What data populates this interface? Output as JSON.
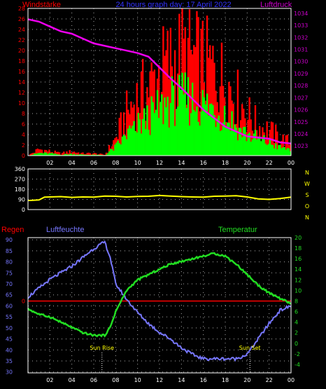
{
  "colors": {
    "background": "#000000",
    "frame": "#ffffff",
    "grid": "#aaaaaa",
    "title_left": "#ff0000",
    "title_center": "#3333ff",
    "title_right": "#cc00cc",
    "wind_gust": "#ff0000",
    "wind_avg": "#00ff00",
    "pressure": "#ee00ee",
    "direction": "#ffff00",
    "compass": "#ffff00",
    "rain": "#ff0000",
    "humidity": "#7777ff",
    "temperature": "#22dd22",
    "sun_label": "#ffff00"
  },
  "header": {
    "left_title": "Windstärke",
    "center_title": "24 hours graph day: 17 April 2022",
    "right_title": "Luftdruck"
  },
  "x_ticks": [
    "02",
    "04",
    "06",
    "08",
    "10",
    "12",
    "14",
    "16",
    "18",
    "20",
    "22",
    "00"
  ],
  "compass": {
    "labels": [
      "N",
      "W",
      "S",
      "O",
      "N"
    ]
  },
  "chart_data": [
    {
      "type": "bar",
      "name": "wind-pressure",
      "x_range_hours": [
        0,
        24
      ],
      "y_left_ticks": [
        "0",
        "2",
        "4",
        "6",
        "8",
        "10",
        "12",
        "14",
        "16",
        "18",
        "20",
        "22",
        "24",
        "26",
        "28"
      ],
      "y_right_ticks": [
        "1034",
        "1033",
        "1032",
        "1031",
        "1030",
        "1029",
        "1028",
        "1027",
        "1026",
        "1025",
        "1024",
        "1023"
      ],
      "ylim_left": [
        0,
        28
      ],
      "ylim_right": [
        1022.2,
        1034.4
      ],
      "gust_profile": [
        [
          0,
          0
        ],
        [
          1,
          1.5
        ],
        [
          2,
          1
        ],
        [
          3,
          0.5
        ],
        [
          4,
          1
        ],
        [
          5,
          0.5
        ],
        [
          6,
          0.5
        ],
        [
          7,
          0.2
        ],
        [
          8,
          4
        ],
        [
          9,
          10
        ],
        [
          10,
          14
        ],
        [
          11,
          16
        ],
        [
          12,
          20
        ],
        [
          13,
          22
        ],
        [
          14,
          24
        ],
        [
          15,
          23
        ],
        [
          16,
          22
        ],
        [
          17,
          20
        ],
        [
          18,
          18
        ],
        [
          19,
          14
        ],
        [
          20,
          10
        ],
        [
          21,
          7
        ],
        [
          22,
          6
        ],
        [
          23,
          4
        ],
        [
          24,
          3
        ]
      ],
      "avg_profile": [
        [
          0,
          0
        ],
        [
          1,
          0.6
        ],
        [
          2,
          0.5
        ],
        [
          3,
          0.2
        ],
        [
          4,
          0.4
        ],
        [
          5,
          0.2
        ],
        [
          6,
          0.2
        ],
        [
          7,
          0.1
        ],
        [
          8,
          2
        ],
        [
          9,
          5
        ],
        [
          10,
          7
        ],
        [
          11,
          9
        ],
        [
          12,
          11
        ],
        [
          13,
          13
        ],
        [
          14,
          14
        ],
        [
          15,
          13
        ],
        [
          16,
          12
        ],
        [
          17,
          11
        ],
        [
          18,
          10
        ],
        [
          19,
          7
        ],
        [
          20,
          5
        ],
        [
          21,
          4
        ],
        [
          22,
          3
        ],
        [
          23,
          2
        ],
        [
          24,
          1.5
        ]
      ],
      "pressure": [
        [
          0,
          1033.5
        ],
        [
          1,
          1033.3
        ],
        [
          2,
          1032.9
        ],
        [
          3,
          1032.5
        ],
        [
          4,
          1032.3
        ],
        [
          5,
          1031.9
        ],
        [
          6,
          1031.5
        ],
        [
          7,
          1031.3
        ],
        [
          8,
          1031.1
        ],
        [
          9,
          1030.9
        ],
        [
          10,
          1030.7
        ],
        [
          11,
          1030.4
        ],
        [
          12,
          1029.5
        ],
        [
          13,
          1028.6
        ],
        [
          14,
          1027.8
        ],
        [
          15,
          1026.9
        ],
        [
          16,
          1026.0
        ],
        [
          17,
          1025.3
        ],
        [
          18,
          1024.6
        ],
        [
          19,
          1024.2
        ],
        [
          20,
          1023.8
        ],
        [
          21,
          1023.7
        ],
        [
          22,
          1023.6
        ],
        [
          23,
          1023.3
        ],
        [
          24,
          1023.2
        ]
      ]
    },
    {
      "type": "line",
      "name": "wind-direction",
      "y_ticks": [
        "360",
        "270",
        "180",
        "90",
        "0"
      ],
      "ylim": [
        0,
        360
      ],
      "direction": [
        [
          0,
          80
        ],
        [
          1,
          85
        ],
        [
          1.5,
          110
        ],
        [
          3,
          115
        ],
        [
          4,
          108
        ],
        [
          5,
          112
        ],
        [
          6,
          110
        ],
        [
          7,
          120
        ],
        [
          8,
          118
        ],
        [
          9,
          112
        ],
        [
          10,
          116
        ],
        [
          11,
          118
        ],
        [
          12,
          125
        ],
        [
          13,
          120
        ],
        [
          14,
          115
        ],
        [
          15,
          112
        ],
        [
          16,
          110
        ],
        [
          17,
          118
        ],
        [
          18,
          120
        ],
        [
          19,
          122
        ],
        [
          20,
          112
        ],
        [
          21,
          95
        ],
        [
          22,
          90
        ],
        [
          23,
          98
        ],
        [
          24,
          110
        ]
      ]
    },
    {
      "type": "line",
      "name": "humidity-temperature",
      "left_title": "Regen",
      "center_title": "Luftfeuchte",
      "right_title": "Temperatur",
      "y_left_ticks": [
        "90",
        "85",
        "80",
        "75",
        "70",
        "65",
        "60",
        "55",
        "50",
        "45",
        "40",
        "35",
        "30"
      ],
      "y_right_ticks": [
        "20",
        "18",
        "16",
        "14",
        "12",
        "10",
        "8",
        "6",
        "4",
        "2",
        "0",
        "-2",
        "-4"
      ],
      "rain_label": "0",
      "rain_value": 0,
      "ylim_humidity": [
        29.6,
        91
      ],
      "ylim_temperature": [
        -5.6,
        20
      ],
      "humidity": [
        [
          0,
          64
        ],
        [
          1,
          68
        ],
        [
          2,
          72
        ],
        [
          3,
          75
        ],
        [
          4,
          78
        ],
        [
          5,
          82
        ],
        [
          6,
          86
        ],
        [
          7,
          89
        ],
        [
          7.5,
          82
        ],
        [
          8,
          70
        ],
        [
          9,
          63
        ],
        [
          10,
          57
        ],
        [
          11,
          52
        ],
        [
          12,
          48
        ],
        [
          13,
          45
        ],
        [
          14,
          41
        ],
        [
          15,
          38
        ],
        [
          16,
          36
        ],
        [
          17,
          36
        ],
        [
          18,
          36
        ],
        [
          19,
          36
        ],
        [
          20,
          38
        ],
        [
          21,
          45
        ],
        [
          22,
          52
        ],
        [
          23,
          58
        ],
        [
          24,
          60
        ]
      ],
      "temperature": [
        [
          0,
          6.5
        ],
        [
          1,
          5.5
        ],
        [
          2,
          5.0
        ],
        [
          3,
          4.0
        ],
        [
          4,
          3.0
        ],
        [
          5,
          2.0
        ],
        [
          6,
          1.5
        ],
        [
          7,
          1.5
        ],
        [
          7.5,
          3
        ],
        [
          8,
          6
        ],
        [
          9,
          10
        ],
        [
          10,
          12
        ],
        [
          11,
          13
        ],
        [
          12,
          14
        ],
        [
          13,
          15
        ],
        [
          14,
          15.5
        ],
        [
          15,
          16
        ],
        [
          16,
          16.5
        ],
        [
          17,
          17
        ],
        [
          18,
          16.5
        ],
        [
          19,
          15
        ],
        [
          20,
          13
        ],
        [
          21,
          11
        ],
        [
          22,
          9.5
        ],
        [
          23,
          8.5
        ],
        [
          24,
          7.5
        ]
      ],
      "sun_rise_label": "Sun Rise",
      "sun_set_label": "Sun Set",
      "sun_rise_hour": 6.75,
      "sun_set_hour": 20.25
    }
  ]
}
